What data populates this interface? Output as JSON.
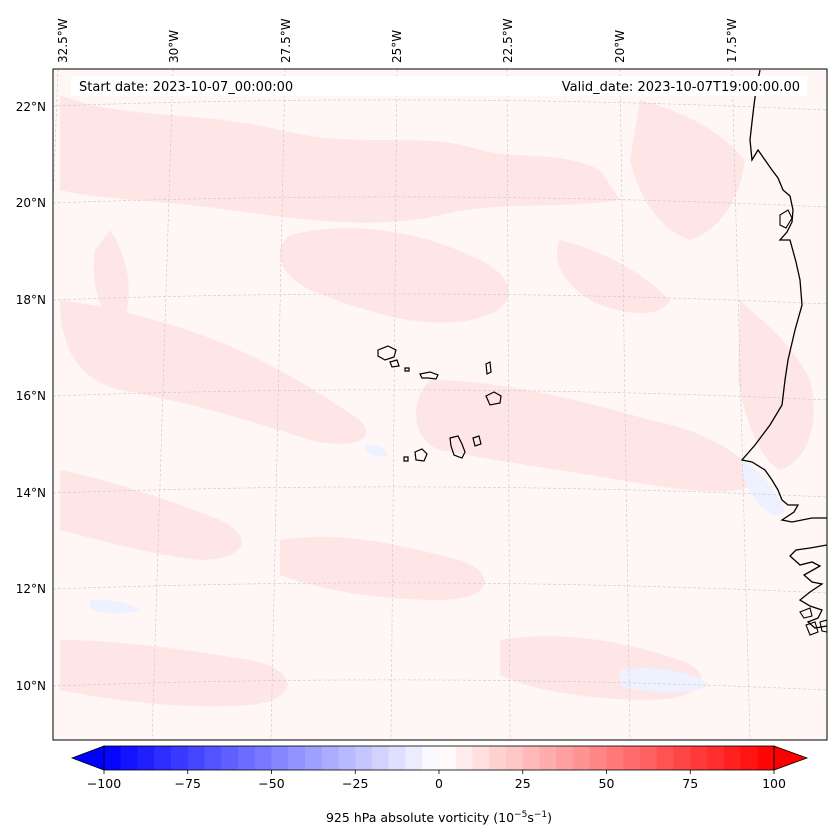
{
  "header": {
    "start_date": "Start date: 2023-10-07_00:00:00",
    "valid_date": "Valid_date: 2023-10-07T19:00:00.00"
  },
  "map": {
    "lon_labels": [
      "32.5°W",
      "30°W",
      "27.5°W",
      "25°W",
      "22.5°W",
      "20°W",
      "17.5°W"
    ],
    "lat_labels": [
      "22°N",
      "20°N",
      "18°N",
      "16°N",
      "14°N",
      "12°N",
      "10°N"
    ],
    "gridlines": "on",
    "field_colors": {
      "light_red": "#ffe5e5",
      "faint_red": "#fff5f5",
      "faint_blue": "#f0f2ff"
    }
  },
  "colorbar": {
    "label_prefix": "925 hPa absolute vorticity (10",
    "label_exp1": "−5",
    "label_mid": "s",
    "label_exp2": "−1",
    "label_suffix": ")",
    "ticks": [
      "−100",
      "−75",
      "−50",
      "−25",
      "0",
      "25",
      "50",
      "75",
      "100"
    ],
    "min": -100,
    "max": 100,
    "levels": 41,
    "colormap": "bwr",
    "extend": "both"
  }
}
